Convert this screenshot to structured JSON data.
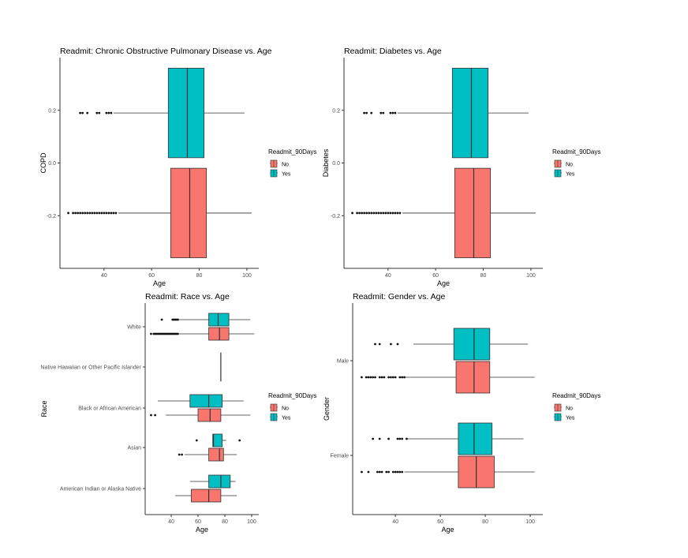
{
  "chart_data": [
    {
      "type": "boxplot",
      "title": "Readmit:  Chronic Obstructive Pulmonary Disease vs. Age",
      "xlabel": "Age",
      "ylabel": "COPD",
      "xlim": [
        21.5,
        105
      ],
      "xticks": [
        40,
        60,
        80,
        100
      ],
      "y_type": "continuous",
      "ylim": [
        -0.4,
        0.4
      ],
      "yticks": [
        "-0.2",
        "0.0",
        "0.2"
      ],
      "legend": {
        "title": "Readmit_90Days",
        "entries": [
          "No",
          "Yes"
        ],
        "placement": "right"
      },
      "boxes": [
        {
          "group": "Yes",
          "ymin": 0.02,
          "ymax": 0.36,
          "q1": 67,
          "median": 75,
          "q3": 82,
          "whisker_low": 44,
          "whisker_high": 99,
          "outliers": [
            30,
            31,
            33,
            37,
            38,
            41,
            42,
            43
          ]
        },
        {
          "group": "No",
          "ymin": -0.36,
          "ymax": -0.02,
          "q1": 68,
          "median": 76,
          "q3": 83,
          "whisker_low": 46,
          "whisker_high": 102,
          "outliers": [
            25,
            27,
            28,
            29,
            30,
            31,
            32,
            33,
            34,
            35,
            36,
            37,
            38,
            39,
            40,
            41,
            42,
            43,
            44,
            45
          ]
        }
      ]
    },
    {
      "type": "boxplot",
      "title": "Readmit:  Diabetes vs. Age",
      "xlabel": "Age",
      "ylabel": "Diabetes",
      "xlim": [
        21.5,
        105
      ],
      "xticks": [
        40,
        60,
        80,
        100
      ],
      "y_type": "continuous",
      "ylim": [
        -0.4,
        0.4
      ],
      "yticks": [
        "-0.2",
        "0.0",
        "0.2"
      ],
      "legend": {
        "title": "Readmit_90Days",
        "entries": [
          "No",
          "Yes"
        ],
        "placement": "right"
      },
      "boxes": [
        {
          "group": "Yes",
          "ymin": 0.02,
          "ymax": 0.36,
          "q1": 67,
          "median": 75,
          "q3": 82,
          "whisker_low": 44,
          "whisker_high": 99,
          "outliers": [
            30,
            31,
            33,
            37,
            38,
            41,
            42,
            43
          ]
        },
        {
          "group": "No",
          "ymin": -0.36,
          "ymax": -0.02,
          "q1": 68,
          "median": 76,
          "q3": 83,
          "whisker_low": 46,
          "whisker_high": 102,
          "outliers": [
            25,
            27,
            28,
            29,
            30,
            31,
            32,
            33,
            34,
            35,
            36,
            37,
            38,
            39,
            40,
            41,
            42,
            43,
            44,
            45
          ]
        }
      ]
    },
    {
      "type": "boxplot",
      "title": "Readmit: Race vs. Age",
      "xlabel": "Age",
      "ylabel": "Race",
      "xlim": [
        20.6,
        105.3
      ],
      "xticks": [
        40,
        60,
        80,
        100
      ],
      "y_type": "categorical",
      "categories": [
        "American Indian or Alaska Native",
        "Asian",
        "Black or African American",
        "Native Hawaiian or Other Pacific Islander",
        "White"
      ],
      "legend": {
        "title": "Readmit_90Days",
        "entries": [
          "No",
          "Yes"
        ],
        "placement": "right"
      },
      "boxes": [
        {
          "category": "White",
          "group": "Yes",
          "q1": 68,
          "median": 75,
          "q3": 83,
          "whisker_low": 46,
          "whisker_high": 99,
          "outliers": [
            33,
            41,
            42,
            43,
            44,
            45
          ]
        },
        {
          "category": "White",
          "group": "No",
          "q1": 68,
          "median": 76,
          "q3": 83,
          "whisker_low": 46,
          "whisker_high": 102,
          "outliers": [
            25,
            27,
            28,
            29,
            30,
            31,
            32,
            33,
            34,
            35,
            36,
            37,
            38,
            39,
            40,
            41,
            42,
            43,
            44,
            45
          ]
        },
        {
          "category": "Native Hawaiian or Other Pacific Islander",
          "group": "single",
          "q1": 77,
          "median": 77,
          "q3": 77,
          "whisker_low": 77,
          "whisker_high": 77,
          "outliers": []
        },
        {
          "category": "Black or African American",
          "group": "Yes",
          "q1": 54,
          "median": 68,
          "q3": 78,
          "whisker_low": 30,
          "whisker_high": 94,
          "outliers": []
        },
        {
          "category": "Black or African American",
          "group": "No",
          "q1": 60,
          "median": 69,
          "q3": 77,
          "whisker_low": 36,
          "whisker_high": 99,
          "outliers": [
            25,
            28
          ]
        },
        {
          "category": "Asian",
          "group": "Yes",
          "q1": 71,
          "median": 71.5,
          "q3": 78,
          "whisker_low": 71,
          "whisker_high": 81,
          "outliers": [
            59,
            91
          ]
        },
        {
          "category": "Asian",
          "group": "No",
          "q1": 68,
          "median": 76,
          "q3": 79,
          "whisker_low": 50,
          "whisker_high": 89,
          "outliers": [
            46,
            48
          ]
        },
        {
          "category": "American Indian or Alaska Native",
          "group": "Yes",
          "q1": 68,
          "median": 77,
          "q3": 84,
          "whisker_low": 54,
          "whisker_high": 88,
          "outliers": []
        },
        {
          "category": "American Indian or Alaska Native",
          "group": "No",
          "q1": 55,
          "median": 68,
          "q3": 77,
          "whisker_low": 43,
          "whisker_high": 89,
          "outliers": []
        }
      ]
    },
    {
      "type": "boxplot",
      "title": "Readmit: Gender vs. Age",
      "xlabel": "Age",
      "ylabel": "Gender",
      "xlim": [
        21,
        105.6
      ],
      "xticks": [
        40,
        60,
        80,
        100
      ],
      "y_type": "categorical",
      "categories": [
        "Female",
        "Male"
      ],
      "legend": {
        "title": "Readmit_90Days",
        "entries": [
          "No",
          "Yes"
        ],
        "placement": "right"
      },
      "boxes": [
        {
          "category": "Male",
          "group": "Yes",
          "q1": 66,
          "median": 75,
          "q3": 82,
          "whisker_low": 48,
          "whisker_high": 99,
          "outliers": [
            31,
            33,
            38,
            41
          ]
        },
        {
          "category": "Male",
          "group": "No",
          "q1": 67,
          "median": 75,
          "q3": 82,
          "whisker_low": 44,
          "whisker_high": 102,
          "outliers": [
            25,
            27,
            28,
            29,
            30,
            31,
            33,
            34,
            35,
            37,
            38,
            39,
            40,
            42,
            43,
            44
          ]
        },
        {
          "category": "Female",
          "group": "Yes",
          "q1": 68,
          "median": 75,
          "q3": 83,
          "whisker_low": 45,
          "whisker_high": 97,
          "outliers": [
            30,
            33,
            37,
            41,
            42,
            43,
            45
          ]
        },
        {
          "category": "Female",
          "group": "No",
          "q1": 68,
          "median": 76,
          "q3": 84,
          "whisker_low": 44,
          "whisker_high": 102,
          "outliers": [
            25,
            28,
            32,
            33,
            34,
            36,
            37,
            39,
            40,
            41,
            42,
            43
          ]
        }
      ]
    }
  ],
  "colors": {
    "No": "#F8766D",
    "Yes": "#00BFC4"
  }
}
